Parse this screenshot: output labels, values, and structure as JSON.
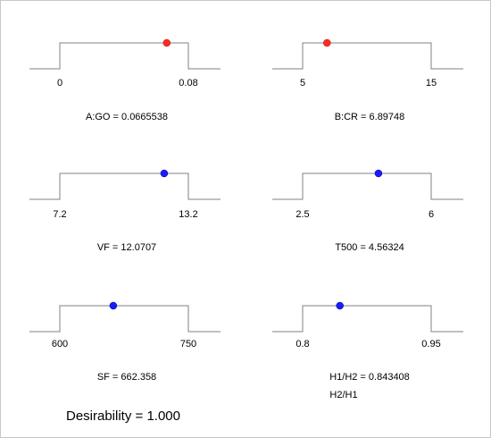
{
  "colors": {
    "line": "#808080",
    "point_red": "#ff2a2a",
    "point_blue": "#1a1aff"
  },
  "factors": [
    {
      "name": "A:GO = 0.0665538",
      "low": "0",
      "high": "0.08",
      "min": 0,
      "max": 0.08,
      "value": 0.0665538,
      "point_color": "red"
    },
    {
      "name": "B:CR = 6.89748",
      "low": "5",
      "high": "15",
      "min": 5,
      "max": 15,
      "value": 6.89748,
      "point_color": "red"
    },
    {
      "name": "VF = 12.0707",
      "low": "7.2",
      "high": "13.2",
      "min": 7.2,
      "max": 13.2,
      "value": 12.0707,
      "point_color": "blue"
    },
    {
      "name": "T500 = 4.56324",
      "low": "2.5",
      "high": "6",
      "min": 2.5,
      "max": 6,
      "value": 4.56324,
      "point_color": "blue"
    },
    {
      "name": "SF = 662.358",
      "low": "600",
      "high": "750",
      "min": 600,
      "max": 750,
      "value": 662.358,
      "point_color": "blue"
    },
    {
      "name": "H1/H2 = 0.843408",
      "low": "0.8",
      "high": "0.95",
      "min": 0.8,
      "max": 0.95,
      "value": 0.843408,
      "point_color": "blue"
    }
  ],
  "extra_label": "H2/H1",
  "desirability": "Desirability = 1.000"
}
